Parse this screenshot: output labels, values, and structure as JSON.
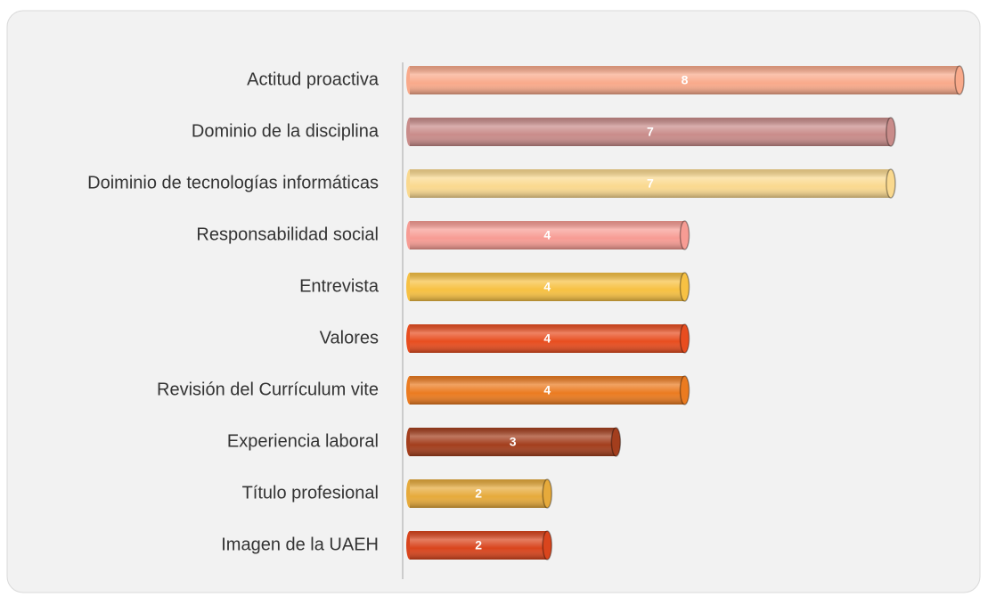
{
  "chart_data": {
    "type": "hbar",
    "categories": [
      "Actitud proactiva",
      "Dominio de la disciplina",
      "Doiminio de tecnologías informáticas",
      "Responsabilidad social",
      "Entrevista",
      "Valores",
      "Revisión del Currículum vite",
      "Experiencia laboral",
      "Título profesional",
      "Imagen de la UAEH"
    ],
    "values": [
      8,
      7,
      7,
      4,
      4,
      4,
      4,
      3,
      2,
      2
    ],
    "colors": [
      "#f9aa8b",
      "#c98c8a",
      "#fad98f",
      "#f79c94",
      "#f7c143",
      "#e84d1f",
      "#eb7b20",
      "#a33e1d",
      "#e6aa3b",
      "#d9451d"
    ],
    "xlim": [
      0,
      8
    ]
  }
}
